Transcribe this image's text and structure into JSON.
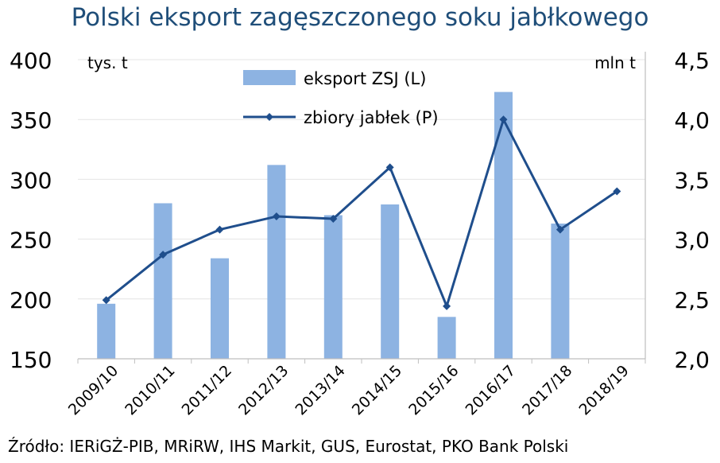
{
  "chart_data": {
    "type": "bar+line",
    "title": "Polski eksport zagęszczonego soku jabłkowego",
    "source": "Źródło: IERiGŻ-PIB, MRiRW, IHS Markit, GUS, Eurostat, PKO Bank Polski",
    "categories": [
      "2009/10",
      "2010/11",
      "2011/12",
      "2012/13",
      "2013/14",
      "2014/15",
      "2015/16",
      "2016/17",
      "2017/18",
      "2018/19"
    ],
    "left_axis": {
      "unit": "tys. t",
      "min": 150,
      "max": 400,
      "ticks": [
        "400",
        "350",
        "300",
        "250",
        "200",
        "150"
      ],
      "tick_values": [
        400,
        350,
        300,
        250,
        200,
        150
      ]
    },
    "right_axis": {
      "unit": "mln t",
      "min": 2.0,
      "max": 4.5,
      "ticks": [
        "4,5",
        "4,0",
        "3,5",
        "3,0",
        "2,5",
        "2,0"
      ],
      "tick_values": [
        4.5,
        4.0,
        3.5,
        3.0,
        2.5,
        2.0
      ]
    },
    "series": [
      {
        "name": "eksport ZSJ (L)",
        "type": "bar",
        "axis": "left",
        "color": "#8db3e2",
        "values": [
          196,
          280,
          234,
          312,
          270,
          279,
          185,
          373,
          263,
          null
        ]
      },
      {
        "name": "zbiory jabłek (P)",
        "type": "line",
        "axis": "right",
        "color": "#1f4e8c",
        "values": [
          2.49,
          2.87,
          3.08,
          3.19,
          3.17,
          3.6,
          2.44,
          4.0,
          3.08,
          3.4
        ]
      }
    ],
    "legend_position": "top-center",
    "grid": true
  }
}
